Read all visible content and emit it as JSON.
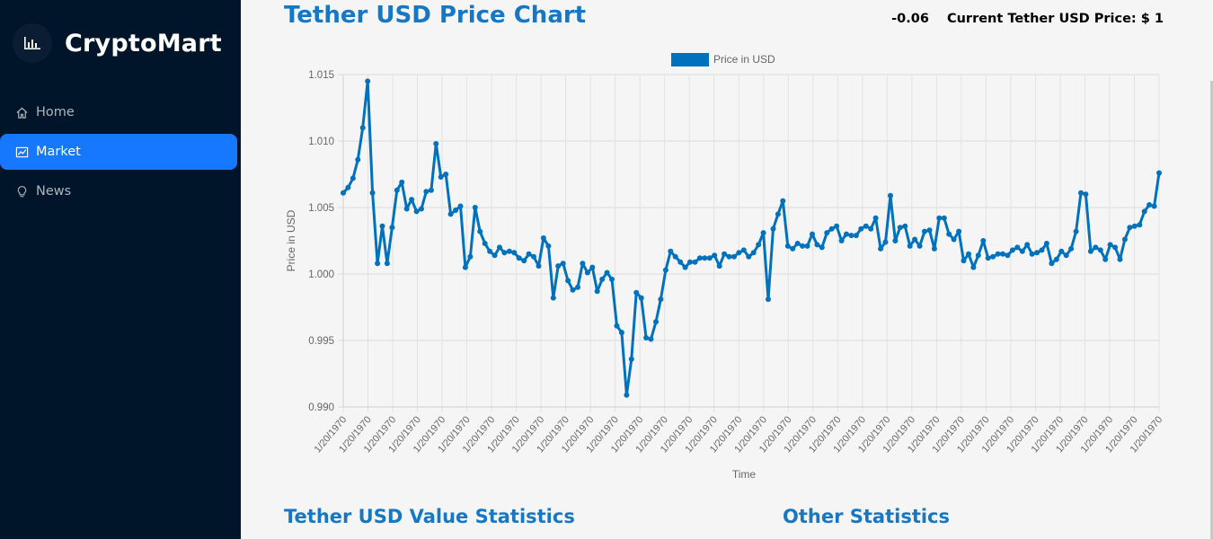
{
  "app": {
    "brand": "CryptoMart",
    "brand_icon": "bar-chart-icon"
  },
  "sidebar": {
    "items": [
      {
        "label": "Home",
        "icon": "home-icon",
        "active": false
      },
      {
        "label": "Market",
        "icon": "stock-chart-icon",
        "active": true
      },
      {
        "label": "News",
        "icon": "bulb-icon",
        "active": false
      }
    ]
  },
  "header": {
    "title": "Tether USD Price Chart",
    "change": "-0.06",
    "current_price": "Current Tether USD Price: $ 1"
  },
  "sections": {
    "value_statistics": "Tether USD Value Statistics",
    "other_statistics": "Other Statistics"
  },
  "colors": {
    "sidebar_bg": "#001529",
    "active_item": "#1677ff",
    "title_blue": "#1677c5",
    "line": "#0071bd"
  },
  "chart_data": {
    "type": "line",
    "legend": "Price in USD",
    "legend_position": "top",
    "xlabel": "Time",
    "ylabel": "Price in USD",
    "ylim": [
      0.99,
      1.015
    ],
    "yticks": [
      "1.015",
      "1.010",
      "1.005",
      "1.000",
      "0.995",
      "0.990"
    ],
    "x_tick_label": "1/20/1970",
    "x_tick_count": 34,
    "grid": true,
    "values": [
      1.0061,
      1.0065,
      1.0072,
      1.0086,
      1.011,
      1.0145,
      1.0061,
      1.0008,
      1.0036,
      1.0008,
      1.0035,
      1.0063,
      1.0069,
      1.0049,
      1.0056,
      1.0047,
      1.0049,
      1.0062,
      1.0063,
      1.0098,
      1.0073,
      1.0075,
      1.0045,
      1.0048,
      1.0051,
      1.0005,
      1.0013,
      1.005,
      1.0032,
      1.0023,
      1.0017,
      1.0014,
      1.002,
      1.0016,
      1.0017,
      1.0016,
      1.0012,
      1.001,
      1.0015,
      1.0013,
      1.0006,
      1.0027,
      1.0021,
      0.9982,
      1.0006,
      1.0008,
      0.9995,
      0.9988,
      0.999,
      1.0008,
      1.0001,
      1.0005,
      0.9987,
      0.9996,
      1.0001,
      0.9996,
      0.9961,
      0.9956,
      0.9909,
      0.9936,
      0.9986,
      0.9982,
      0.9952,
      0.9951,
      0.9964,
      0.9981,
      1.0003,
      1.0017,
      1.0013,
      1.0009,
      1.0005,
      1.0009,
      1.0009,
      1.0012,
      1.0012,
      1.0012,
      1.0014,
      1.0006,
      1.0015,
      1.0013,
      1.0013,
      1.0016,
      1.0018,
      1.0013,
      1.0016,
      1.0022,
      1.0031,
      0.9981,
      1.0034,
      1.0045,
      1.0055,
      1.0021,
      1.0019,
      1.0023,
      1.0021,
      1.0021,
      1.003,
      1.0022,
      1.002,
      1.0031,
      1.0034,
      1.0036,
      1.0025,
      1.003,
      1.0029,
      1.0029,
      1.0034,
      1.0036,
      1.0034,
      1.0042,
      1.0019,
      1.0024,
      1.0059,
      1.0025,
      1.0035,
      1.0036,
      1.0021,
      1.0026,
      1.0021,
      1.0032,
      1.0033,
      1.0019,
      1.0042,
      1.0042,
      1.003,
      1.0026,
      1.0032,
      1.001,
      1.0015,
      1.0005,
      1.0014,
      1.0025,
      1.0012,
      1.0013,
      1.0015,
      1.0015,
      1.0014,
      1.0018,
      1.002,
      1.0017,
      1.0022,
      1.0015,
      1.0016,
      1.0018,
      1.0023,
      1.0008,
      1.0011,
      1.0017,
      1.0014,
      1.0019,
      1.0032,
      1.0061,
      1.006,
      1.0017,
      1.002,
      1.0018,
      1.0011,
      1.0022,
      1.002,
      1.0011,
      1.0026,
      1.0035,
      1.0036,
      1.0037,
      1.0047,
      1.0052,
      1.0051,
      1.0076
    ]
  }
}
